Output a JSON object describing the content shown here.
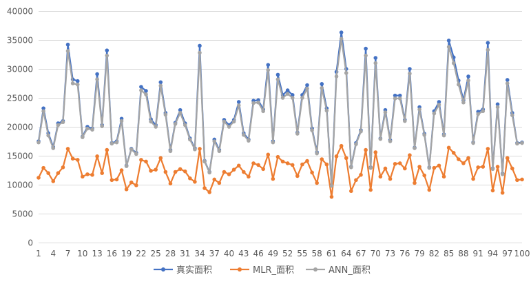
{
  "chart_data": {
    "type": "line",
    "title": "",
    "xlabel": "",
    "ylabel": "",
    "ylim": [
      0,
      40000
    ],
    "yticks": [
      0,
      5000,
      10000,
      15000,
      20000,
      25000,
      30000,
      35000,
      40000
    ],
    "xticks": [
      1,
      4,
      7,
      10,
      13,
      16,
      19,
      22,
      25,
      28,
      31,
      34,
      37,
      40,
      43,
      46,
      49,
      52,
      55,
      58,
      61,
      64,
      67,
      70,
      73,
      76,
      79,
      82,
      85,
      88,
      91,
      94,
      97,
      100
    ],
    "grid": true,
    "legend_position": "bottom",
    "x": [
      1,
      2,
      3,
      4,
      5,
      6,
      7,
      8,
      9,
      10,
      11,
      12,
      13,
      14,
      15,
      16,
      17,
      18,
      19,
      20,
      21,
      22,
      23,
      24,
      25,
      26,
      27,
      28,
      29,
      30,
      31,
      32,
      33,
      34,
      35,
      36,
      37,
      38,
      39,
      40,
      41,
      42,
      43,
      44,
      45,
      46,
      47,
      48,
      49,
      50,
      51,
      52,
      53,
      54,
      55,
      56,
      57,
      58,
      59,
      60,
      61,
      62,
      63,
      64,
      65,
      66,
      67,
      68,
      69,
      70,
      71,
      72,
      73,
      74,
      75,
      76,
      77,
      78,
      79,
      80,
      81,
      82,
      83,
      84,
      85,
      86,
      87,
      88,
      89,
      90,
      91,
      92,
      93,
      94,
      95,
      96,
      97,
      98,
      99,
      100
    ],
    "series": [
      {
        "name": "真实面积",
        "color": "#4472C4",
        "values": [
          17500,
          23200,
          18900,
          16500,
          20600,
          21000,
          34200,
          28200,
          27900,
          18300,
          20000,
          19700,
          29100,
          20300,
          33200,
          17200,
          17500,
          21400,
          13300,
          16200,
          15500,
          26900,
          26200,
          21300,
          20300,
          27700,
          22400,
          16000,
          20700,
          22900,
          20600,
          18000,
          16300,
          34000,
          14100,
          12200,
          17800,
          16000,
          21200,
          20300,
          21200,
          24300,
          18900,
          17800,
          24500,
          24600,
          23000,
          30700,
          17500,
          29000,
          25500,
          26300,
          25500,
          19000,
          25500,
          27200,
          19700,
          15600,
          27400,
          23200,
          9900,
          29500,
          36300,
          30000,
          13100,
          17200,
          19400,
          33500,
          13000,
          31900,
          18000,
          22900,
          17700,
          25400,
          25400,
          21200,
          30000,
          16400,
          23400,
          18800,
          13000,
          22700,
          24300,
          18700,
          34900,
          32000,
          28000,
          24600,
          28700,
          17300,
          22600,
          23000,
          34500,
          12800,
          23900,
          11900,
          28100,
          22400,
          17200,
          17300
        ]
      },
      {
        "name": "MLR_面积",
        "color": "#ED7D31",
        "values": [
          11200,
          12900,
          12000,
          10600,
          12000,
          13000,
          16200,
          14500,
          14300,
          11400,
          11800,
          11700,
          14900,
          12000,
          16000,
          10800,
          10900,
          12500,
          9200,
          10400,
          9900,
          14300,
          14000,
          12400,
          12600,
          14600,
          12200,
          10200,
          12200,
          12700,
          12300,
          11100,
          10500,
          16200,
          9400,
          8700,
          10900,
          10300,
          12200,
          11800,
          12600,
          13300,
          12200,
          11400,
          13700,
          13400,
          12700,
          15200,
          11000,
          14800,
          14000,
          13700,
          13400,
          11500,
          13500,
          14100,
          12100,
          10300,
          14400,
          13500,
          7900,
          14900,
          16700,
          14600,
          8900,
          10800,
          11700,
          16000,
          9100,
          15600,
          11400,
          12800,
          11000,
          13600,
          13700,
          12800,
          15100,
          10300,
          13100,
          11600,
          9100,
          12900,
          13300,
          11400,
          16400,
          15500,
          14400,
          13700,
          14600,
          11000,
          13000,
          13100,
          16200,
          9000,
          13100,
          8600,
          14600,
          12800,
          10800,
          10900
        ]
      },
      {
        "name": "ANN_面积",
        "color": "#A5A5A5",
        "values": [
          17300,
          22700,
          18500,
          16300,
          20300,
          20800,
          33100,
          27500,
          27300,
          18200,
          19700,
          19500,
          28200,
          20100,
          32300,
          17100,
          17300,
          21000,
          13200,
          16100,
          15300,
          26300,
          25600,
          20900,
          20000,
          27100,
          22100,
          15800,
          20500,
          22400,
          20300,
          17800,
          16100,
          32800,
          14000,
          12100,
          17500,
          15800,
          20900,
          20000,
          20900,
          23700,
          18600,
          17600,
          24100,
          24200,
          22700,
          29800,
          17300,
          28200,
          25000,
          25700,
          25000,
          18800,
          25000,
          26600,
          19400,
          15400,
          26700,
          22800,
          9800,
          28700,
          35200,
          29300,
          13000,
          17000,
          19200,
          32300,
          12900,
          31000,
          17900,
          22500,
          17500,
          24900,
          24900,
          21000,
          29200,
          16300,
          23000,
          18600,
          12900,
          22300,
          23800,
          18500,
          33800,
          31000,
          27300,
          24200,
          28000,
          17200,
          22200,
          22700,
          33300,
          12700,
          23400,
          11800,
          27500,
          22000,
          17100,
          17200
        ]
      }
    ]
  }
}
